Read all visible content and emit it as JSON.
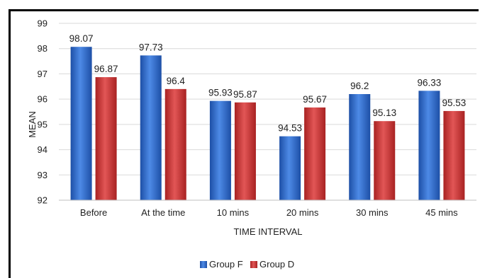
{
  "chart_data": {
    "type": "bar",
    "title": "",
    "xlabel": "TIME INTERVAL",
    "ylabel": "MEAN",
    "ylim": [
      92,
      99
    ],
    "yticks": [
      92,
      93,
      94,
      95,
      96,
      97,
      98,
      99
    ],
    "grid": true,
    "legend_position": "bottom",
    "categories": [
      "Before",
      "At the time",
      "10 mins",
      "20 mins",
      "30 mins",
      "45 mins"
    ],
    "series": [
      {
        "name": "Group F",
        "color": "#2f6fd0",
        "values": [
          98.07,
          97.73,
          95.93,
          94.53,
          96.2,
          96.33
        ],
        "labels": [
          "98.07",
          "97.73",
          "95.93",
          "94.53",
          "96.2",
          "96.33"
        ]
      },
      {
        "name": "Group D",
        "color": "#d63a3a",
        "values": [
          96.87,
          96.4,
          95.87,
          95.67,
          95.13,
          95.53
        ],
        "labels": [
          "96.87",
          "96.4",
          "95.87",
          "95.67",
          "95.13",
          "95.53"
        ]
      }
    ]
  }
}
